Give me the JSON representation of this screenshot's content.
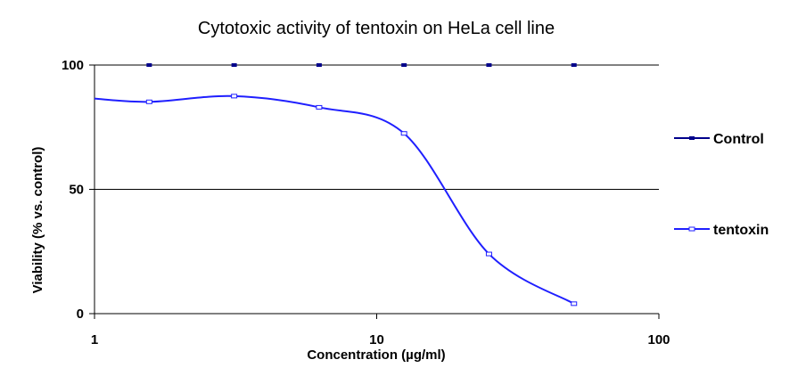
{
  "chart_data": {
    "type": "line",
    "title": "Cytotoxic activity of tentoxin on HeLa cell line",
    "xlabel": "Concentration (µg/ml)",
    "ylabel": "Viability (% vs. control)",
    "x_scale": "log",
    "xlim": [
      1,
      100
    ],
    "ylim": [
      0,
      100
    ],
    "x_ticks": [
      1,
      10,
      100
    ],
    "y_ticks": [
      0,
      50,
      100
    ],
    "x_tick_labels": [
      "1",
      "10",
      "100"
    ],
    "y_tick_labels": [
      "0",
      "50",
      "100"
    ],
    "gridlines": [
      50
    ],
    "legend_position": "right",
    "smooth": true,
    "series": [
      {
        "name": "Control",
        "color": "#00008b",
        "marker": "square",
        "x": [
          1.5625,
          3.125,
          6.25,
          12.5,
          25,
          50
        ],
        "y": [
          100,
          100,
          100,
          100,
          100,
          100
        ]
      },
      {
        "name": "tentoxin",
        "color": "#1f1fff",
        "marker": "square-open",
        "x": [
          1,
          1.5625,
          3.125,
          6.25,
          12.5,
          25,
          50
        ],
        "y": [
          86.5,
          85.2,
          87.5,
          83,
          72.5,
          24,
          4
        ]
      }
    ]
  }
}
